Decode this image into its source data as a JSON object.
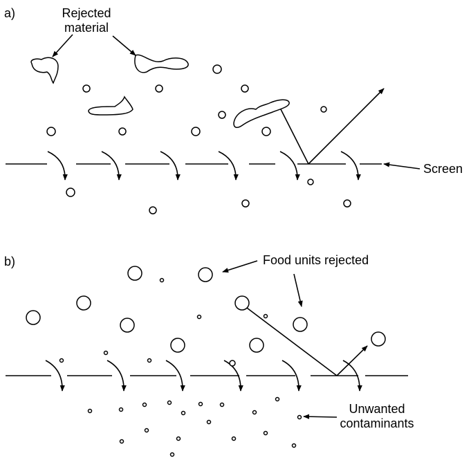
{
  "panels": {
    "a": {
      "letter": "a)",
      "rejected_label_line1": "Rejected",
      "rejected_label_line2": "material",
      "screen_label": "Screen"
    },
    "b": {
      "letter": "b)",
      "food_label": "Food units rejected",
      "contaminants_label_line1": "Unwanted",
      "contaminants_label_line2": "contaminants"
    }
  },
  "colors": {
    "ink": "#000000",
    "background": "#ffffff"
  }
}
